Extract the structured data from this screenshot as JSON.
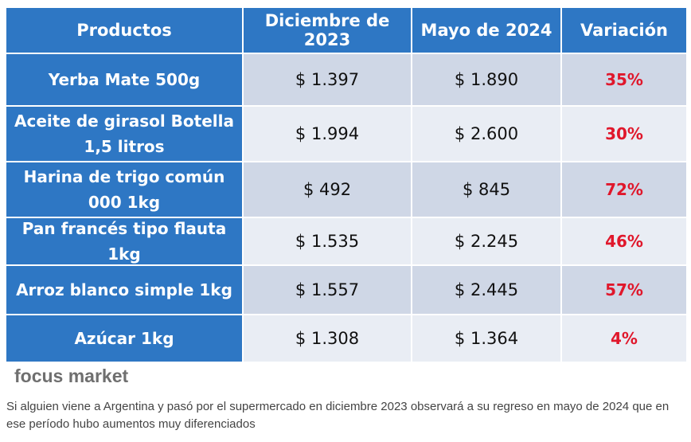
{
  "chart_data": {
    "type": "table",
    "columns": [
      "Productos",
      "Diciembre de 2023",
      "Mayo de 2024",
      "Variación"
    ],
    "rows": [
      {
        "producto": "Yerba Mate 500g",
        "dic_2023": "$ 1.397",
        "may_2024": "$ 1.890",
        "variacion": "35%"
      },
      {
        "producto": "Aceite de girasol Botella 1,5 litros",
        "dic_2023": "$ 1.994",
        "may_2024": "$ 2.600",
        "variacion": "30%"
      },
      {
        "producto": "Harina de trigo común 000 1kg",
        "dic_2023": "$ 492",
        "may_2024": "$ 845",
        "variacion": "72%"
      },
      {
        "producto": "Pan francés tipo flauta 1kg",
        "dic_2023": "$ 1.535",
        "may_2024": "$ 2.245",
        "variacion": "46%"
      },
      {
        "producto": "Arroz blanco simple 1kg",
        "dic_2023": "$ 1.557",
        "may_2024": "$ 2.445",
        "variacion": "57%"
      },
      {
        "producto": "Azúcar 1kg",
        "dic_2023": "$ 1.308",
        "may_2024": "$ 1.364",
        "variacion": "4%"
      }
    ]
  },
  "brand": "focus market",
  "caption": "Si alguien viene a Argentina y pasó por el supermercado en diciembre 2023 observará a su regreso en mayo de 2024 que en ese período hubo aumentos muy diferenciados",
  "colors": {
    "header_blue": "#2e77c4",
    "row_odd": "#cfd7e6",
    "row_even": "#e9edf4",
    "variation_red": "#e0172b"
  }
}
